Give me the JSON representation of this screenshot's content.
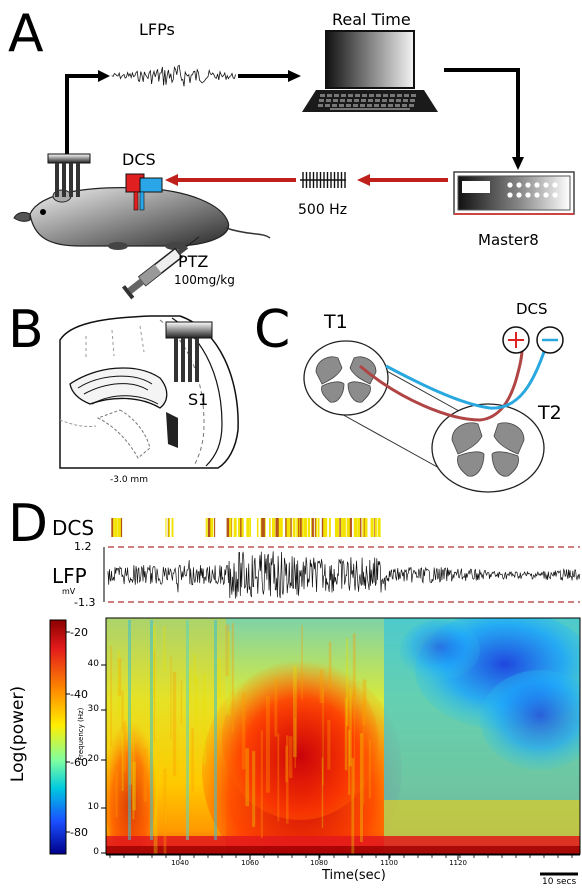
{
  "panel_a": {
    "letter": "A",
    "lfp_label": "LFPs",
    "realtime_label": "Real Time",
    "dcs_label": "DCS",
    "hz_label": "500 Hz",
    "master_label": "Master8",
    "ptz_label": "PTZ",
    "dose_label": "100mg/kg"
  },
  "panel_b": {
    "letter": "B",
    "s1_label": "S1",
    "depth_label": "-3.0 mm"
  },
  "panel_c": {
    "letter": "C",
    "t1_label": "T1",
    "t2_label": "T2",
    "dcs_label": "DCS",
    "plus_symbol": "+",
    "minus_symbol": "−",
    "plus_color": "#d22",
    "minus_color": "#29a8e0",
    "lead_red_color": "#b04545",
    "lead_blue_color": "#29a8e0"
  },
  "panel_d": {
    "letter": "D",
    "dcs_label": "DCS",
    "lfp_label": "LFP",
    "unit_label": "mV",
    "ytop_label": "1.2",
    "ybot_label": "-1.3",
    "colorbar_label": "Log(power)",
    "colorbar_ticks": [
      "-20",
      "-40",
      "-60",
      "-80"
    ],
    "freq_label": "Frequency (Hz)",
    "freq_ticks": [
      "40",
      "30",
      "20",
      "10",
      "0"
    ],
    "time_ticks": [
      "1040",
      "1060",
      "1080",
      "1100",
      "1120"
    ],
    "time_label": "Time(sec)",
    "scale_label": "10 secs"
  }
}
